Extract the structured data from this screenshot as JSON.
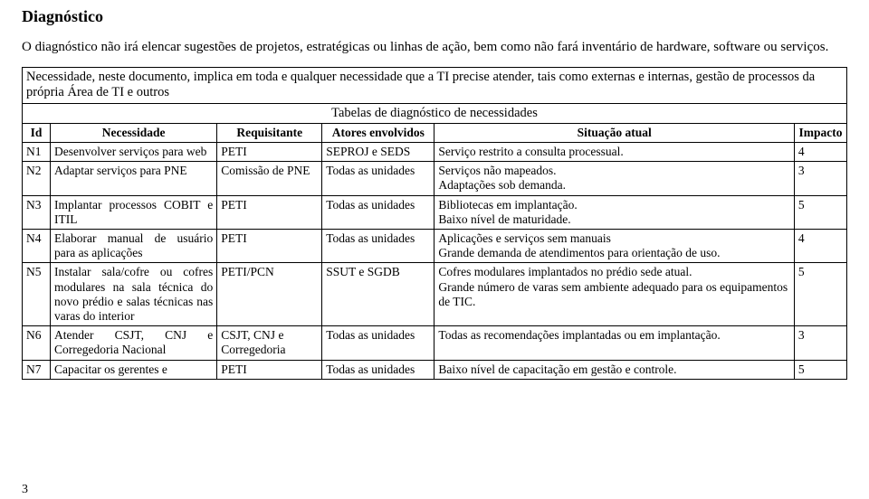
{
  "document": {
    "title": "Diagnóstico",
    "intro_paragraph": "O diagnóstico não irá elencar sugestões de projetos, estratégicas ou linhas de ação, bem como não fará inventário de hardware, software ou serviços.",
    "table_intro": "Necessidade, neste documento, implica em toda e qualquer necessidade que a TI precise atender, tais como externas e internas, gestão de processos da própria Área de TI e outros",
    "table_caption": "Tabelas de diagnóstico de necessidades",
    "page_number": "3",
    "headers": {
      "id": "Id",
      "necessidade": "Necessidade",
      "requisitante": "Requisitante",
      "atores": "Atores envolvidos",
      "situacao": "Situação atual",
      "impacto": "Impacto"
    },
    "rows": [
      {
        "id": "N1",
        "necessidade": "Desenvolver serviços para web",
        "requisitante": "PETI",
        "atores": "SEPROJ e SEDS",
        "situacao": "Serviço restrito a consulta processual.",
        "impacto": "4"
      },
      {
        "id": "N2",
        "necessidade": "Adaptar serviços para PNE",
        "requisitante": "Comissão de PNE",
        "atores": "Todas as unidades",
        "situacao": "Serviços não mapeados.\nAdaptações sob demanda.",
        "impacto": "3"
      },
      {
        "id": "N3",
        "necessidade": "Implantar processos COBIT e ITIL",
        "requisitante": "PETI",
        "atores": "Todas as unidades",
        "situacao": "Bibliotecas em implantação.\nBaixo nível de maturidade.",
        "impacto": "5"
      },
      {
        "id": "N4",
        "necessidade": "Elaborar manual de usuário para as aplicações",
        "requisitante": "PETI",
        "atores": "Todas as unidades",
        "situacao": "Aplicações e serviços sem manuais\nGrande demanda de atendimentos para orientação de uso.",
        "impacto": "4"
      },
      {
        "id": "N5",
        "necessidade": "Instalar sala/cofre ou cofres modulares na sala técnica do novo prédio e salas técnicas nas varas do interior",
        "requisitante": "PETI/PCN",
        "atores": "SSUT e SGDB",
        "situacao": "Cofres modulares implantados no prédio sede atual.\nGrande número de varas sem ambiente adequado para os equipamentos de TIC.",
        "impacto": "5"
      },
      {
        "id": "N6",
        "necessidade": "Atender CSJT, CNJ e Corregedoria Nacional",
        "requisitante": "CSJT, CNJ e Corregedoria",
        "atores": "Todas as unidades",
        "situacao": "Todas as recomendações implantadas ou em implantação.",
        "impacto": "3"
      },
      {
        "id": "N7",
        "necessidade": "Capacitar os gerentes e",
        "requisitante": "PETI",
        "atores": "Todas as unidades",
        "situacao": "Baixo nível de capacitação em gestão e controle.",
        "impacto": "5"
      }
    ]
  }
}
